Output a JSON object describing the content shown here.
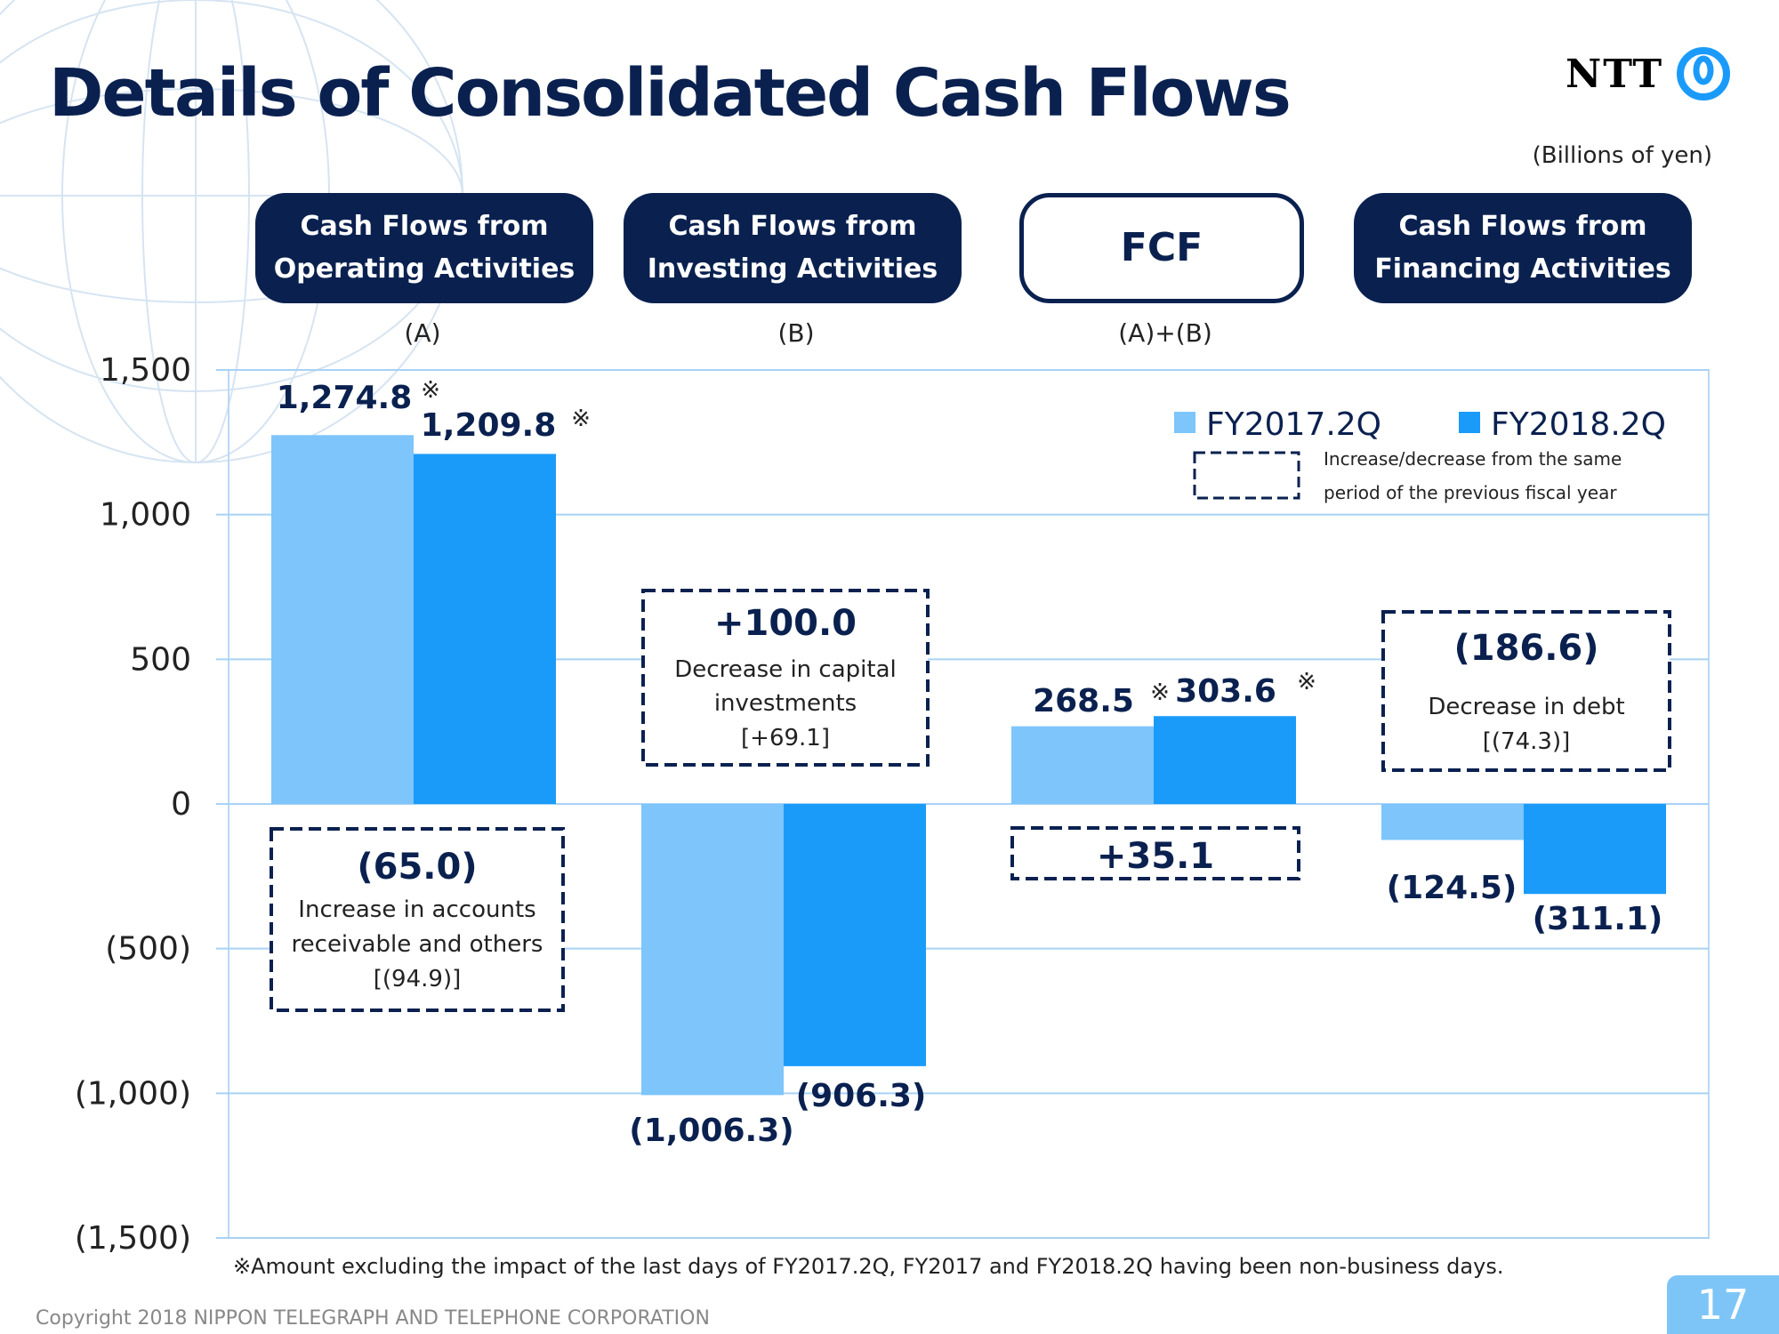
{
  "slide": {
    "title": "Details of Consolidated Cash Flows",
    "logo": "NTT",
    "units": "(Billions of yen)",
    "categories": [
      {
        "label": "Cash Flows from\nOperating Activities",
        "sub": "(A)"
      },
      {
        "label": "Cash Flows from\nInvesting Activities",
        "sub": "(B)"
      },
      {
        "label": "FCF",
        "sub": "(A)+(B)"
      },
      {
        "label": "Cash Flows from\nFinancing Activities",
        "sub": ""
      }
    ],
    "footnote": "※Amount excluding the impact of the last days of FY2017.2Q, FY2017 and FY2018.2Q having been non-business days.",
    "copyright": "Copyright 2018 NIPPON TELEGRAPH AND TELEPHONE CORPORATION",
    "page_number": "17"
  },
  "chart_data": {
    "type": "bar",
    "categories": [
      "Operating",
      "Investing",
      "FCF",
      "Financing"
    ],
    "series": [
      {
        "name": "FY2017.2Q",
        "color": "#7dc5fb",
        "values": [
          1274.8,
          -1006.3,
          268.5,
          -124.5
        ],
        "labels": [
          "1,274.8",
          "(1,006.3)",
          "268.5",
          "(124.5)"
        ]
      },
      {
        "name": "FY2018.2Q",
        "color": "#1a9bfa",
        "values": [
          1209.8,
          -906.3,
          303.6,
          -311.1
        ],
        "labels": [
          "1,209.8",
          "(906.3)",
          "303.6",
          "(311.1)"
        ]
      }
    ],
    "note_marks": [
      [
        "※",
        "",
        "※",
        ""
      ],
      [
        "※",
        "",
        "※",
        ""
      ]
    ],
    "ylim": [
      -1500,
      1500
    ],
    "yticks": [
      1500,
      1000,
      500,
      0,
      -500,
      -1000,
      -1500
    ],
    "ytick_labels": [
      "1,500",
      "1,000",
      "500",
      "0",
      "(500)",
      "(1,000)",
      "(1,500)"
    ],
    "grid": true,
    "legend_note": [
      "Increase/decrease from the same",
      "period of the previous fiscal year"
    ],
    "annotations": [
      {
        "value": "(65.0)",
        "lines": [
          "Increase in accounts",
          "receivable and others",
          "[(94.9)]"
        ]
      },
      {
        "value": "+100.0",
        "lines": [
          "Decrease in capital",
          "investments",
          "[+69.1]"
        ]
      },
      {
        "value": "+35.1",
        "lines": []
      },
      {
        "value": "(186.6)",
        "lines": [
          "Decrease in debt",
          "[(74.3)]"
        ]
      }
    ]
  }
}
